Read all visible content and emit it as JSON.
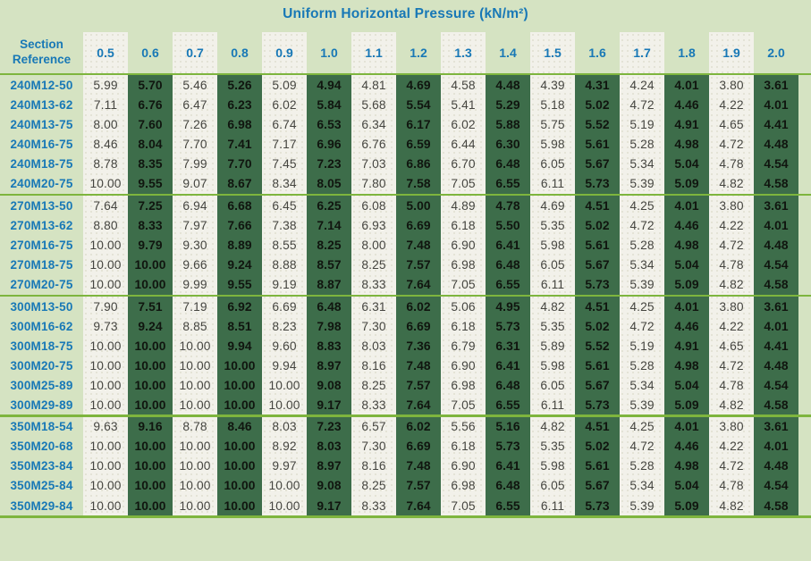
{
  "title": "Uniform Horizontal Pressure (kN/m²)",
  "corner_header": {
    "line1": "Section",
    "line2": "Reference"
  },
  "pressure_columns": [
    "0.5",
    "0.6",
    "0.7",
    "0.8",
    "0.9",
    "1.0",
    "1.1",
    "1.2",
    "1.3",
    "1.4",
    "1.5",
    "1.6",
    "1.7",
    "1.8",
    "1.9",
    "2.0"
  ],
  "groups": [
    {
      "rows": [
        {
          "section": "240M12-50",
          "values": [
            "5.99",
            "5.70",
            "5.46",
            "5.26",
            "5.09",
            "4.94",
            "4.81",
            "4.69",
            "4.58",
            "4.48",
            "4.39",
            "4.31",
            "4.24",
            "4.01",
            "3.80",
            "3.61"
          ]
        },
        {
          "section": "240M13-62",
          "values": [
            "7.11",
            "6.76",
            "6.47",
            "6.23",
            "6.02",
            "5.84",
            "5.68",
            "5.54",
            "5.41",
            "5.29",
            "5.18",
            "5.02",
            "4.72",
            "4.46",
            "4.22",
            "4.01"
          ]
        },
        {
          "section": "240M13-75",
          "values": [
            "8.00",
            "7.60",
            "7.26",
            "6.98",
            "6.74",
            "6.53",
            "6.34",
            "6.17",
            "6.02",
            "5.88",
            "5.75",
            "5.52",
            "5.19",
            "4.91",
            "4.65",
            "4.41"
          ]
        },
        {
          "section": "240M16-75",
          "values": [
            "8.46",
            "8.04",
            "7.70",
            "7.41",
            "7.17",
            "6.96",
            "6.76",
            "6.59",
            "6.44",
            "6.30",
            "5.98",
            "5.61",
            "5.28",
            "4.98",
            "4.72",
            "4.48"
          ]
        },
        {
          "section": "240M18-75",
          "values": [
            "8.78",
            "8.35",
            "7.99",
            "7.70",
            "7.45",
            "7.23",
            "7.03",
            "6.86",
            "6.70",
            "6.48",
            "6.05",
            "5.67",
            "5.34",
            "5.04",
            "4.78",
            "4.54"
          ]
        },
        {
          "section": "240M20-75",
          "values": [
            "10.00",
            "9.55",
            "9.07",
            "8.67",
            "8.34",
            "8.05",
            "7.80",
            "7.58",
            "7.05",
            "6.55",
            "6.11",
            "5.73",
            "5.39",
            "5.09",
            "4.82",
            "4.58"
          ]
        }
      ]
    },
    {
      "rows": [
        {
          "section": "270M13-50",
          "values": [
            "7.64",
            "7.25",
            "6.94",
            "6.68",
            "6.45",
            "6.25",
            "6.08",
            "5.00",
            "4.89",
            "4.78",
            "4.69",
            "4.51",
            "4.25",
            "4.01",
            "3.80",
            "3.61"
          ]
        },
        {
          "section": "270M13-62",
          "values": [
            "8.80",
            "8.33",
            "7.97",
            "7.66",
            "7.38",
            "7.14",
            "6.93",
            "6.69",
            "6.18",
            "5.50",
            "5.35",
            "5.02",
            "4.72",
            "4.46",
            "4.22",
            "4.01"
          ]
        },
        {
          "section": "270M16-75",
          "values": [
            "10.00",
            "9.79",
            "9.30",
            "8.89",
            "8.55",
            "8.25",
            "8.00",
            "7.48",
            "6.90",
            "6.41",
            "5.98",
            "5.61",
            "5.28",
            "4.98",
            "4.72",
            "4.48"
          ]
        },
        {
          "section": "270M18-75",
          "values": [
            "10.00",
            "10.00",
            "9.66",
            "9.24",
            "8.88",
            "8.57",
            "8.25",
            "7.57",
            "6.98",
            "6.48",
            "6.05",
            "5.67",
            "5.34",
            "5.04",
            "4.78",
            "4.54"
          ]
        },
        {
          "section": "270M20-75",
          "values": [
            "10.00",
            "10.00",
            "9.99",
            "9.55",
            "9.19",
            "8.87",
            "8.33",
            "7.64",
            "7.05",
            "6.55",
            "6.11",
            "5.73",
            "5.39",
            "5.09",
            "4.82",
            "4.58"
          ]
        }
      ]
    },
    {
      "rows": [
        {
          "section": "300M13-50",
          "values": [
            "7.90",
            "7.51",
            "7.19",
            "6.92",
            "6.69",
            "6.48",
            "6.31",
            "6.02",
            "5.06",
            "4.95",
            "4.82",
            "4.51",
            "4.25",
            "4.01",
            "3.80",
            "3.61"
          ]
        },
        {
          "section": "300M16-62",
          "values": [
            "9.73",
            "9.24",
            "8.85",
            "8.51",
            "8.23",
            "7.98",
            "7.30",
            "6.69",
            "6.18",
            "5.73",
            "5.35",
            "5.02",
            "4.72",
            "4.46",
            "4.22",
            "4.01"
          ]
        },
        {
          "section": "300M18-75",
          "values": [
            "10.00",
            "10.00",
            "10.00",
            "9.94",
            "9.60",
            "8.83",
            "8.03",
            "7.36",
            "6.79",
            "6.31",
            "5.89",
            "5.52",
            "5.19",
            "4.91",
            "4.65",
            "4.41"
          ]
        },
        {
          "section": "300M20-75",
          "values": [
            "10.00",
            "10.00",
            "10.00",
            "10.00",
            "9.94",
            "8.97",
            "8.16",
            "7.48",
            "6.90",
            "6.41",
            "5.98",
            "5.61",
            "5.28",
            "4.98",
            "4.72",
            "4.48"
          ]
        },
        {
          "section": "300M25-89",
          "values": [
            "10.00",
            "10.00",
            "10.00",
            "10.00",
            "10.00",
            "9.08",
            "8.25",
            "7.57",
            "6.98",
            "6.48",
            "6.05",
            "5.67",
            "5.34",
            "5.04",
            "4.78",
            "4.54"
          ]
        },
        {
          "section": "300M29-89",
          "values": [
            "10.00",
            "10.00",
            "10.00",
            "10.00",
            "10.00",
            "9.17",
            "8.33",
            "7.64",
            "7.05",
            "6.55",
            "6.11",
            "5.73",
            "5.39",
            "5.09",
            "4.82",
            "4.58"
          ]
        }
      ]
    },
    {
      "rows": [
        {
          "section": "350M18-54",
          "values": [
            "9.63",
            "9.16",
            "8.78",
            "8.46",
            "8.03",
            "7.23",
            "6.57",
            "6.02",
            "5.56",
            "5.16",
            "4.82",
            "4.51",
            "4.25",
            "4.01",
            "3.80",
            "3.61"
          ]
        },
        {
          "section": "350M20-68",
          "values": [
            "10.00",
            "10.00",
            "10.00",
            "10.00",
            "8.92",
            "8.03",
            "7.30",
            "6.69",
            "6.18",
            "5.73",
            "5.35",
            "5.02",
            "4.72",
            "4.46",
            "4.22",
            "4.01"
          ]
        },
        {
          "section": "350M23-84",
          "values": [
            "10.00",
            "10.00",
            "10.00",
            "10.00",
            "9.97",
            "8.97",
            "8.16",
            "7.48",
            "6.90",
            "6.41",
            "5.98",
            "5.61",
            "5.28",
            "4.98",
            "4.72",
            "4.48"
          ]
        },
        {
          "section": "350M25-84",
          "values": [
            "10.00",
            "10.00",
            "10.00",
            "10.00",
            "10.00",
            "9.08",
            "8.25",
            "7.57",
            "6.98",
            "6.48",
            "6.05",
            "5.67",
            "5.34",
            "5.04",
            "4.78",
            "4.54"
          ]
        },
        {
          "section": "350M29-84",
          "values": [
            "10.00",
            "10.00",
            "10.00",
            "10.00",
            "10.00",
            "9.17",
            "8.33",
            "7.64",
            "7.05",
            "6.55",
            "6.11",
            "5.73",
            "5.39",
            "5.09",
            "4.82",
            "4.58"
          ]
        }
      ]
    }
  ],
  "colors": {
    "page_background": "#d5e3c2",
    "highlight_column_green": "#3d6d4a",
    "stripe_offwhite": "#f2f1ea",
    "rule_green": "#7eb53e",
    "heading_blue": "#1878b6",
    "value_regular": "#454540",
    "value_bold": "#10150f"
  }
}
